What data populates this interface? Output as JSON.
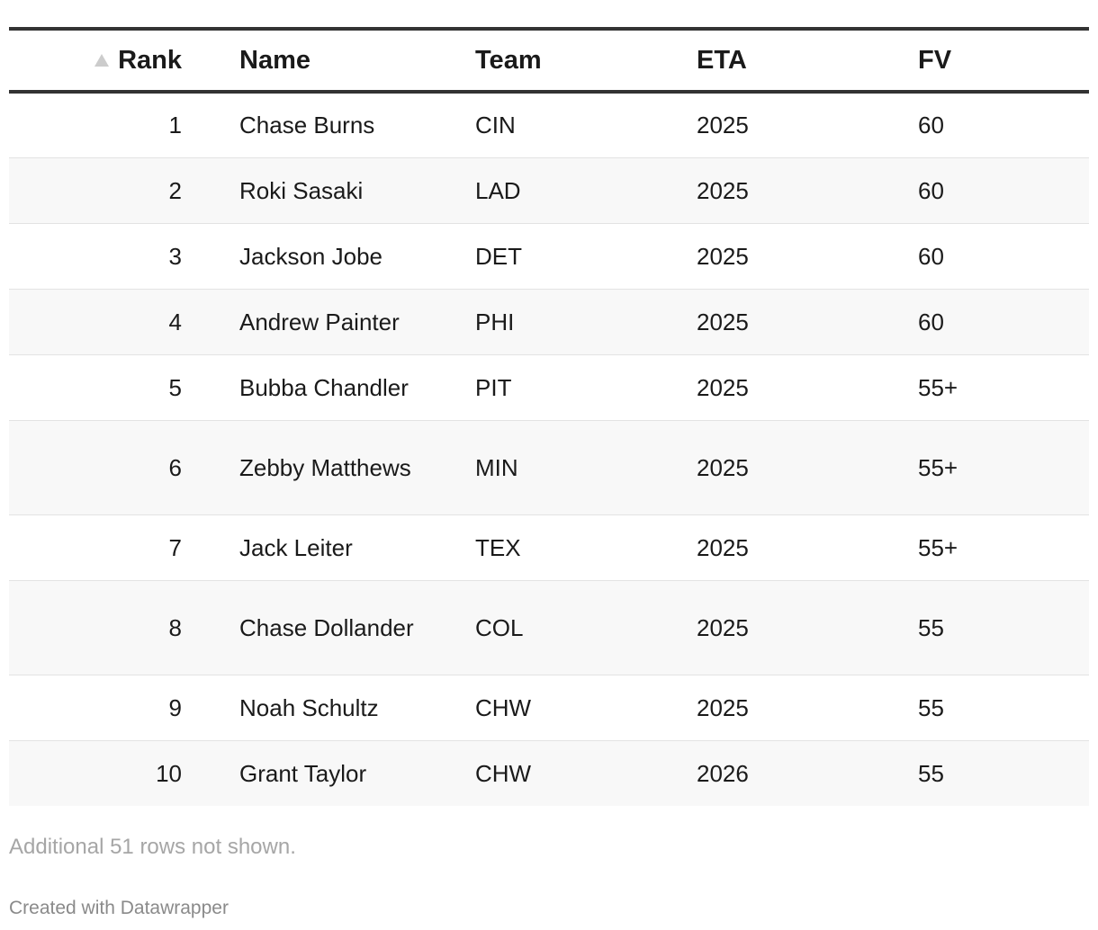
{
  "table": {
    "columns": {
      "rank": "Rank",
      "name": "Name",
      "team": "Team",
      "eta": "ETA",
      "fv": "FV"
    },
    "sort_icon": "triangle-up-icon",
    "rows": [
      {
        "rank": "1",
        "name": "Chase Burns",
        "team": "CIN",
        "eta": "2025",
        "fv": "60"
      },
      {
        "rank": "2",
        "name": "Roki Sasaki",
        "team": "LAD",
        "eta": "2025",
        "fv": "60"
      },
      {
        "rank": "3",
        "name": "Jackson Jobe",
        "team": "DET",
        "eta": "2025",
        "fv": "60"
      },
      {
        "rank": "4",
        "name": "Andrew Painter",
        "team": "PHI",
        "eta": "2025",
        "fv": "60"
      },
      {
        "rank": "5",
        "name": "Bubba Chandler",
        "team": "PIT",
        "eta": "2025",
        "fv": "55+"
      },
      {
        "rank": "6",
        "name": "Zebby Matthews",
        "team": "MIN",
        "eta": "2025",
        "fv": "55+"
      },
      {
        "rank": "7",
        "name": "Jack Leiter",
        "team": "TEX",
        "eta": "2025",
        "fv": "55+"
      },
      {
        "rank": "8",
        "name": "Chase Dollander",
        "team": "COL",
        "eta": "2025",
        "fv": "55"
      },
      {
        "rank": "9",
        "name": "Noah Schultz",
        "team": "CHW",
        "eta": "2025",
        "fv": "55"
      },
      {
        "rank": "10",
        "name": "Grant Taylor",
        "team": "CHW",
        "eta": "2026",
        "fv": "55"
      }
    ]
  },
  "footnote": "Additional 51 rows not shown.",
  "credit": "Created with Datawrapper"
}
